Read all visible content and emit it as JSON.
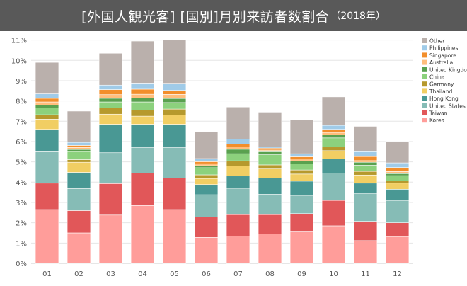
{
  "title": {
    "main": "[外国人観光客] [国別]月別来訪者数割合",
    "suffix": "（2018年）"
  },
  "chart_data": {
    "type": "bar",
    "stacked": true,
    "title": "[外国人観光客] [国別]月別来訪者数割合（2018年）",
    "xlabel": "",
    "ylabel": "",
    "ylim": [
      0,
      11.3
    ],
    "y_ticks": [
      0,
      1,
      2,
      3,
      4,
      5,
      6,
      7,
      8,
      9,
      10,
      11
    ],
    "y_tick_suffix": "%",
    "grid": true,
    "legend_position": "right",
    "categories": [
      "01",
      "02",
      "03",
      "04",
      "05",
      "06",
      "07",
      "08",
      "09",
      "10",
      "11",
      "12"
    ],
    "series": [
      {
        "name": "Korea",
        "color": "#ff9d9a",
        "values": [
          2.65,
          1.5,
          2.38,
          2.85,
          2.65,
          1.28,
          1.35,
          1.45,
          1.55,
          1.85,
          1.12,
          1.32
        ]
      },
      {
        "name": "Taiwan",
        "color": "#e15759",
        "values": [
          1.3,
          1.1,
          1.55,
          1.6,
          1.55,
          1.0,
          1.05,
          0.95,
          0.9,
          1.25,
          0.95,
          0.68
        ]
      },
      {
        "name": "United States",
        "color": "#86bcb6",
        "values": [
          1.55,
          1.08,
          1.52,
          1.25,
          1.5,
          1.1,
          1.3,
          1.0,
          0.9,
          1.35,
          1.38,
          1.1
        ]
      },
      {
        "name": "Hong Kong",
        "color": "#499894",
        "values": [
          1.1,
          0.8,
          1.4,
          1.15,
          1.15,
          0.5,
          0.6,
          0.8,
          0.7,
          0.7,
          0.5,
          0.55
        ]
      },
      {
        "name": "Thailand",
        "color": "#f1ce63",
        "values": [
          0.5,
          0.5,
          0.5,
          0.4,
          0.45,
          0.3,
          0.5,
          0.45,
          0.35,
          0.4,
          0.4,
          0.3
        ]
      },
      {
        "name": "Germany",
        "color": "#b6992d",
        "values": [
          0.22,
          0.13,
          0.3,
          0.3,
          0.3,
          0.18,
          0.25,
          0.2,
          0.2,
          0.18,
          0.18,
          0.12
        ]
      },
      {
        "name": "China",
        "color": "#8cd17d",
        "values": [
          0.33,
          0.4,
          0.3,
          0.4,
          0.32,
          0.35,
          0.35,
          0.5,
          0.3,
          0.45,
          0.3,
          0.25
        ]
      },
      {
        "name": "United Kingdom",
        "color": "#59a14f",
        "values": [
          0.15,
          0.1,
          0.18,
          0.2,
          0.2,
          0.1,
          0.22,
          0.15,
          0.15,
          0.15,
          0.15,
          0.1
        ]
      },
      {
        "name": "Australia",
        "color": "#ffbe7d",
        "values": [
          0.15,
          0.1,
          0.18,
          0.18,
          0.2,
          0.1,
          0.12,
          0.08,
          0.1,
          0.12,
          0.08,
          0.1
        ]
      },
      {
        "name": "Singapore",
        "color": "#f28e2b",
        "values": [
          0.18,
          0.1,
          0.25,
          0.25,
          0.2,
          0.1,
          0.13,
          0.1,
          0.1,
          0.15,
          0.2,
          0.2
        ]
      },
      {
        "name": "Philippines",
        "color": "#a0cbe8",
        "values": [
          0.22,
          0.15,
          0.22,
          0.3,
          0.35,
          0.15,
          0.25,
          0.05,
          0.15,
          0.2,
          0.24,
          0.23
        ]
      },
      {
        "name": "Other",
        "color": "#bab0ac",
        "values": [
          1.55,
          1.54,
          1.57,
          2.07,
          2.13,
          1.33,
          1.58,
          1.72,
          1.68,
          1.4,
          1.25,
          1.05
        ]
      }
    ]
  }
}
